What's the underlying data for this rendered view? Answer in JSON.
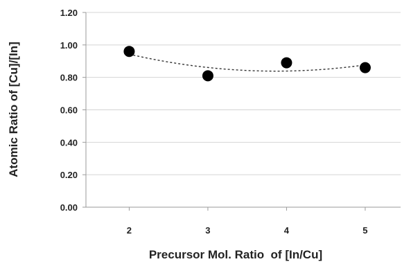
{
  "chart_data": {
    "type": "scatter",
    "xlabel": "Precursor Mol. Ratio  of [In/Cu]",
    "ylabel": "Atomic Ratio of [Cu]/[In]",
    "x_ticks": [
      "2",
      "3",
      "4",
      "5"
    ],
    "y_ticks": [
      "0.00",
      "0.20",
      "0.40",
      "0.60",
      "0.80",
      "1.00",
      "1.20"
    ],
    "xlim": [
      1.45,
      5.45
    ],
    "ylim": [
      0,
      1.2
    ],
    "grid": true,
    "legend": "none",
    "series": [
      {
        "x": [
          2,
          3,
          4,
          5
        ],
        "y": [
          0.96,
          0.81,
          0.89,
          0.86
        ],
        "marker_color": "#000000",
        "trendline": "polynomial-2-dotted"
      }
    ]
  }
}
